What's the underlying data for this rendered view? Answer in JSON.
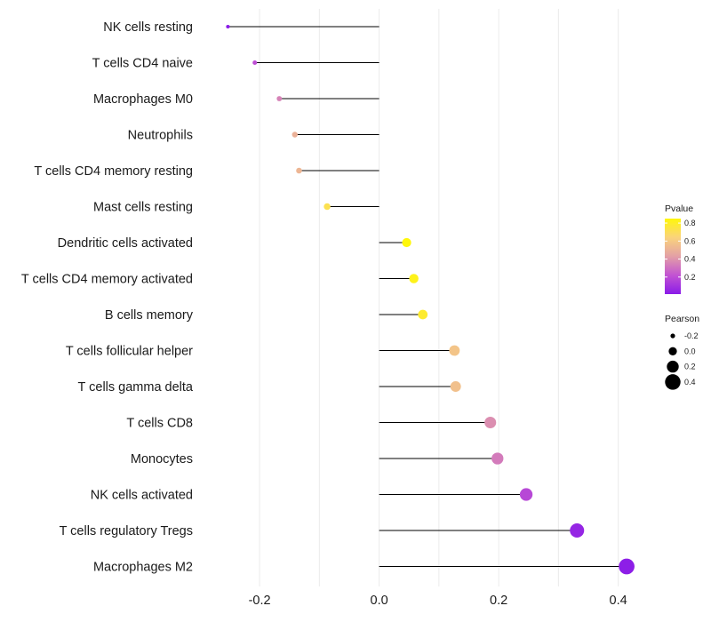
{
  "chart_data": {
    "type": "lollipop",
    "title": "",
    "xlabel": "",
    "ylabel": "",
    "xlim": [
      -0.27,
      0.46
    ],
    "x_ticks": [
      -0.2,
      0.0,
      0.2,
      0.4
    ],
    "x_tick_labels": [
      "-0.2",
      "0.0",
      "0.2",
      "0.4"
    ],
    "grid": "vertical",
    "categories": [
      "NK cells resting",
      "T cells CD4 naive",
      "Macrophages M0",
      "Neutrophils",
      "T cells CD4 memory resting",
      "Mast cells resting",
      "Dendritic cells activated",
      "T cells CD4 memory activated",
      "B cells memory",
      "T cells follicular helper",
      "T cells gamma delta",
      "T cells CD8",
      "Monocytes",
      "NK cells activated",
      "T cells regulatory  Tregs ",
      "Macrophages M2"
    ],
    "pearson": [
      -0.253,
      -0.208,
      -0.167,
      -0.141,
      -0.134,
      -0.087,
      0.046,
      0.058,
      0.073,
      0.126,
      0.128,
      0.186,
      0.198,
      0.246,
      0.331,
      0.414
    ],
    "pvalue": [
      0.01,
      0.2,
      0.35,
      0.5,
      0.52,
      0.72,
      0.85,
      0.82,
      0.78,
      0.58,
      0.56,
      0.38,
      0.33,
      0.18,
      0.05,
      0.02
    ],
    "legend": {
      "pvalue": {
        "title": "Pvalue",
        "ticks": [
          0.2,
          0.4,
          0.6,
          0.8
        ],
        "tick_labels": [
          "0.2",
          "0.4",
          "0.6",
          "0.8"
        ],
        "range": [
          0.01,
          0.85
        ],
        "colors": [
          "#8a1be8",
          "#c253d2",
          "#e3a0a6",
          "#fad37c",
          "#fff70a"
        ]
      },
      "pearson": {
        "title": "Pearson",
        "values": [
          -0.2,
          0.0,
          0.2,
          0.4
        ],
        "labels": [
          "-0.2",
          "0.0",
          "0.2",
          "0.4"
        ]
      },
      "placement": "right"
    }
  }
}
